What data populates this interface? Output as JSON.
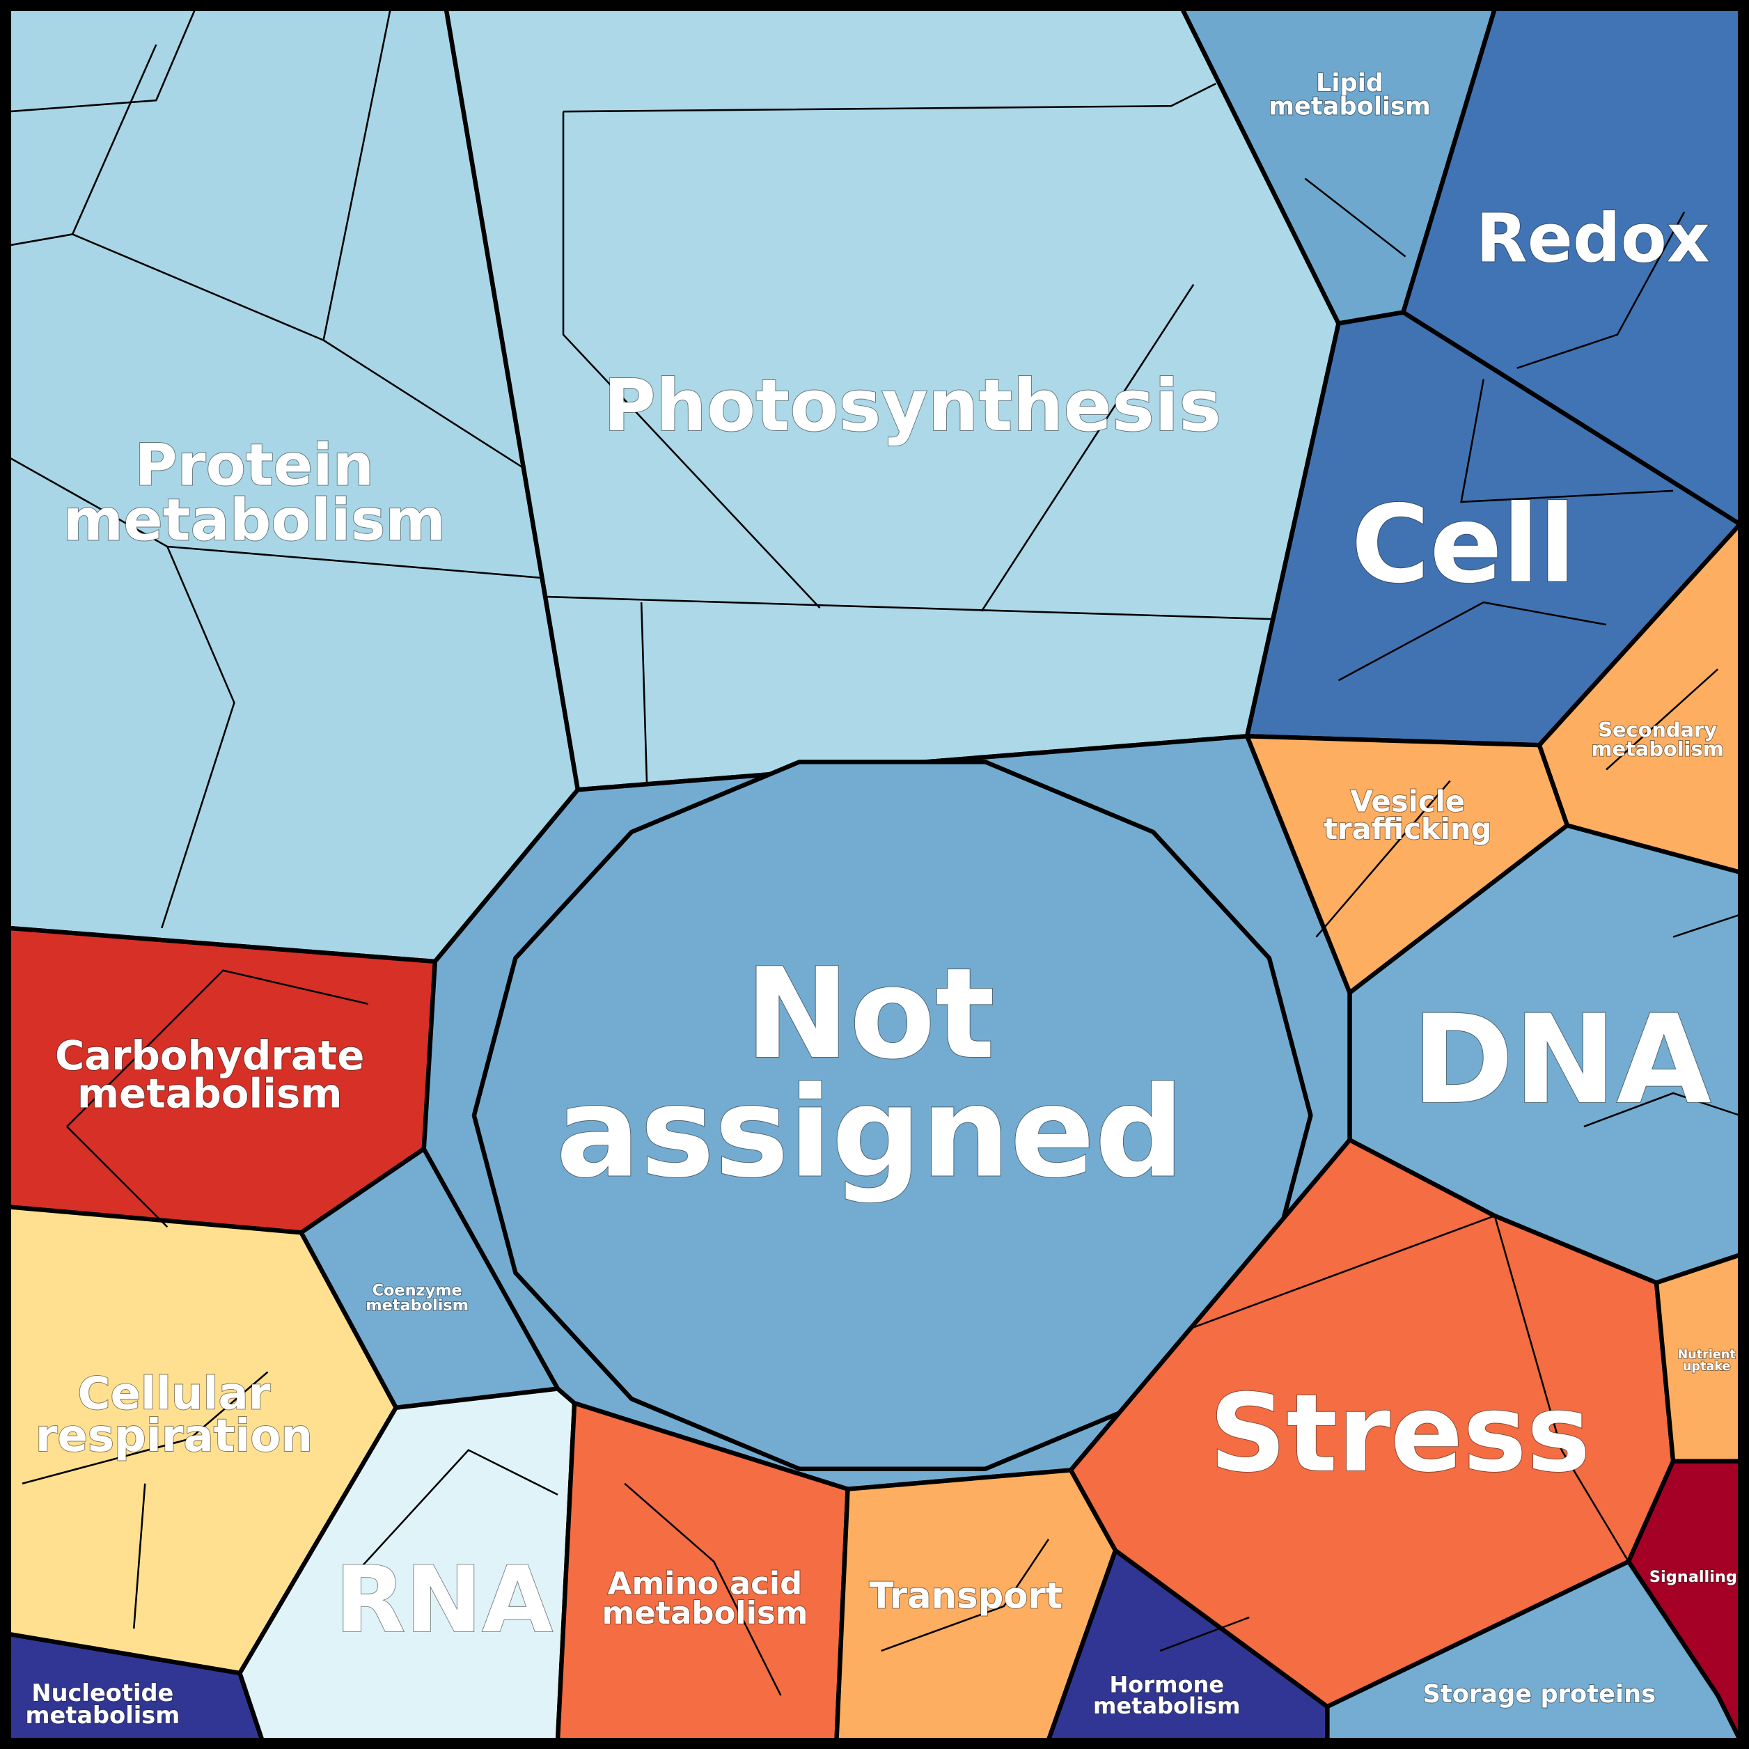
{
  "cells": [
    {
      "lines": [
        "Protein",
        "metabolism"
      ],
      "color": "#a8d6e6"
    },
    {
      "lines": [
        "Photosynthesis"
      ],
      "color": "#acd8e8"
    },
    {
      "lines": [
        "Lipid",
        "metabolism"
      ],
      "color": "#6fa8cf"
    },
    {
      "lines": [
        "Redox"
      ],
      "color": "#4074b4"
    },
    {
      "lines": [
        "Cell"
      ],
      "color": "#4173b3"
    },
    {
      "lines": [
        "Secondary",
        "metabolism"
      ],
      "color": "#fdae61"
    },
    {
      "lines": [
        "Vesicle",
        "trafficking"
      ],
      "color": "#fdae61"
    },
    {
      "lines": [
        "DNA"
      ],
      "color": "#74add1"
    },
    {
      "lines": [
        "Not",
        "assigned"
      ],
      "color": "#74acd1"
    },
    {
      "lines": [
        "Carbohydrate",
        "metabolism"
      ],
      "color": "#d73027"
    },
    {
      "lines": [
        "Coenzyme",
        "metabolism"
      ],
      "color": "#74add1"
    },
    {
      "lines": [
        "Cellular",
        "respiration"
      ],
      "color": "#fee090"
    },
    {
      "lines": [
        "Nucleotide",
        "metabolism"
      ],
      "color": "#313695"
    },
    {
      "lines": [
        "RNA"
      ],
      "color": "#e0f3f8"
    },
    {
      "lines": [
        "Amino acid",
        "metabolism"
      ],
      "color": "#f46d43"
    },
    {
      "lines": [
        "Transport"
      ],
      "color": "#fdae61"
    },
    {
      "lines": [
        "Hormone",
        "metabolism"
      ],
      "color": "#313695"
    },
    {
      "lines": [
        "Stress"
      ],
      "color": "#f46d43"
    },
    {
      "lines": [
        "Nutrient",
        "uptake"
      ],
      "color": "#fdae61"
    },
    {
      "lines": [
        "Signalling"
      ],
      "color": "#a50026"
    },
    {
      "lines": [
        "Storage proteins"
      ],
      "color": "#74add1"
    }
  ]
}
